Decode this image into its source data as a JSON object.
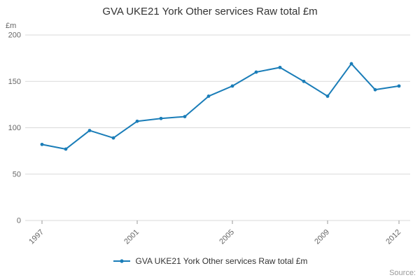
{
  "chart_data": {
    "type": "line",
    "title": "GVA UKE21 York Other services Raw total £m",
    "xlabel": "",
    "ylabel": "£m",
    "ylim": [
      0,
      200
    ],
    "yticks": [
      0,
      50,
      100,
      150,
      200
    ],
    "grid": true,
    "legend_position": "bottom",
    "x": [
      1997,
      1998,
      1999,
      2000,
      2001,
      2002,
      2003,
      2004,
      2005,
      2006,
      2007,
      2008,
      2009,
      2010,
      2011,
      2012
    ],
    "x_tick_labels": [
      "1997",
      "2001",
      "2005",
      "2009",
      "2012"
    ],
    "series": [
      {
        "name": "GVA UKE21 York Other services Raw total £m",
        "values": [
          82,
          77,
          97,
          89,
          107,
          110,
          112,
          134,
          145,
          160,
          165,
          150,
          134,
          169,
          141,
          145
        ],
        "color": "#1a7db8"
      }
    ],
    "colors": {
      "line": "#1a7db8",
      "grid": "#d9d9d9",
      "axis_text": "#666666",
      "tick_mark": "#999999",
      "title": "#333333",
      "source_text": "#999999"
    }
  },
  "source": {
    "label": "Source:"
  }
}
